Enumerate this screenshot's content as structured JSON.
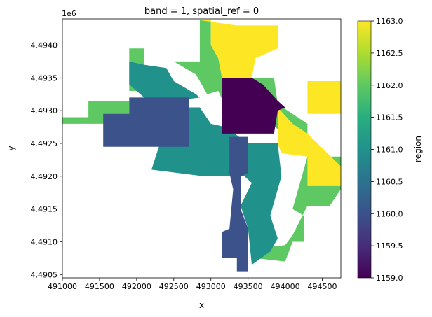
{
  "chart_data": {
    "type": "heatmap",
    "title": "band = 1, spatial_ref = 0",
    "xlabel": "x",
    "ylabel": "y",
    "y_offset_label": "1e6",
    "xlim": [
      491000,
      494750
    ],
    "ylim": [
      4490450,
      4494400
    ],
    "x_ticks": [
      {
        "value": 491000,
        "label": "491000"
      },
      {
        "value": 491500,
        "label": "491500"
      },
      {
        "value": 492000,
        "label": "492000"
      },
      {
        "value": 492500,
        "label": "492500"
      },
      {
        "value": 493000,
        "label": "493000"
      },
      {
        "value": 493500,
        "label": "493500"
      },
      {
        "value": 494000,
        "label": "494000"
      },
      {
        "value": 494500,
        "label": "494500"
      }
    ],
    "y_ticks": [
      {
        "value": 4490500,
        "label": "4.4905"
      },
      {
        "value": 4491000,
        "label": "4.4910"
      },
      {
        "value": 4491500,
        "label": "4.4915"
      },
      {
        "value": 4492000,
        "label": "4.4920"
      },
      {
        "value": 4492500,
        "label": "4.4925"
      },
      {
        "value": 4493000,
        "label": "4.4930"
      },
      {
        "value": 4493500,
        "label": "4.4935"
      },
      {
        "value": 4494000,
        "label": "4.4940"
      }
    ],
    "colorbar": {
      "label": "region",
      "colormap": "viridis",
      "range": [
        1159.0,
        1163.0
      ],
      "ticks": [
        {
          "value": 1159.0,
          "label": "1159.0"
        },
        {
          "value": 1159.5,
          "label": "1159.5"
        },
        {
          "value": 1160.0,
          "label": "1160.0"
        },
        {
          "value": 1160.5,
          "label": "1160.5"
        },
        {
          "value": 1161.0,
          "label": "1161.0"
        },
        {
          "value": 1161.5,
          "label": "1161.5"
        },
        {
          "value": 1162.0,
          "label": "1162.0"
        },
        {
          "value": 1162.5,
          "label": "1162.5"
        },
        {
          "value": 1163.0,
          "label": "1163.0"
        }
      ]
    },
    "regions": [
      {
        "value": 1162,
        "polygon": [
          [
            491000,
            4492900
          ],
          [
            491350,
            4492900
          ],
          [
            491350,
            4493150
          ],
          [
            491900,
            4493150
          ],
          [
            491900,
            4492800
          ],
          [
            491000,
            4492800
          ]
        ]
      },
      {
        "value": 1162,
        "polygon": [
          [
            491900,
            4493950
          ],
          [
            492100,
            4493950
          ],
          [
            492100,
            4493300
          ],
          [
            491900,
            4493300
          ]
        ]
      },
      {
        "value": 1162,
        "polygon": [
          [
            492850,
            4494380
          ],
          [
            493000,
            4494380
          ],
          [
            493000,
            4494000
          ],
          [
            493100,
            4493800
          ],
          [
            493150,
            4493500
          ],
          [
            493550,
            4493500
          ],
          [
            493600,
            4493350
          ],
          [
            493500,
            4493050
          ],
          [
            493200,
            4493050
          ],
          [
            493100,
            4493300
          ],
          [
            492950,
            4493250
          ],
          [
            492800,
            4493550
          ],
          [
            492500,
            4493750
          ],
          [
            492850,
            4493750
          ]
        ]
      },
      {
        "value": 1163,
        "polygon": [
          [
            492850,
            4494380
          ],
          [
            493000,
            4494380
          ],
          [
            493000,
            4494000
          ],
          [
            493100,
            4493800
          ],
          [
            493150,
            4493500
          ],
          [
            493550,
            4493500
          ],
          [
            493600,
            4493800
          ],
          [
            493900,
            4493950
          ],
          [
            493900,
            4494300
          ],
          [
            493350,
            4494300
          ],
          [
            492850,
            4494380
          ]
        ]
      },
      {
        "value": 1162,
        "polygon": [
          [
            493150,
            4493500
          ],
          [
            493850,
            4493500
          ],
          [
            493900,
            4493100
          ],
          [
            494300,
            4492800
          ],
          [
            494300,
            4492300
          ],
          [
            494750,
            4492300
          ],
          [
            494750,
            4491800
          ],
          [
            494600,
            4491550
          ],
          [
            494300,
            4491550
          ],
          [
            494100,
            4491100
          ],
          [
            494000,
            4490950
          ],
          [
            493650,
            4490900
          ],
          [
            493600,
            4490750
          ],
          [
            494000,
            4490700
          ],
          [
            494100,
            4491000
          ],
          [
            494250,
            4491000
          ],
          [
            494250,
            4491400
          ],
          [
            494100,
            4491500
          ],
          [
            494300,
            4492300
          ]
        ]
      },
      {
        "value": 1163,
        "polygon": [
          [
            494300,
            4493450
          ],
          [
            494750,
            4493450
          ],
          [
            494750,
            4492950
          ],
          [
            494300,
            4492950
          ]
        ]
      },
      {
        "value": 1163,
        "polygon": [
          [
            493900,
            4493050
          ],
          [
            494100,
            4492800
          ],
          [
            494300,
            4492650
          ],
          [
            494750,
            4492150
          ],
          [
            494750,
            4491850
          ],
          [
            494300,
            4491850
          ],
          [
            494300,
            4492300
          ],
          [
            493950,
            4492350
          ],
          [
            493900,
            4492500
          ]
        ]
      },
      {
        "value": 1161,
        "polygon": [
          [
            492100,
            4493700
          ],
          [
            492400,
            4493650
          ],
          [
            492500,
            4493450
          ],
          [
            492800,
            4493250
          ],
          [
            492850,
            4493200
          ],
          [
            492500,
            4493150
          ],
          [
            492100,
            4493200
          ],
          [
            491900,
            4493400
          ],
          [
            491900,
            4493750
          ]
        ]
      },
      {
        "value": 1161,
        "polygon": [
          [
            492400,
            4493050
          ],
          [
            492850,
            4493050
          ],
          [
            493000,
            4492800
          ],
          [
            493200,
            4492750
          ],
          [
            493500,
            4492500
          ],
          [
            493900,
            4492500
          ],
          [
            493950,
            4492000
          ],
          [
            493800,
            4491400
          ],
          [
            493900,
            4491050
          ],
          [
            493800,
            4490850
          ],
          [
            493550,
            4490650
          ],
          [
            493500,
            4491200
          ],
          [
            493400,
            4491550
          ],
          [
            493550,
            4491900
          ],
          [
            493450,
            4492000
          ],
          [
            492900,
            4492000
          ],
          [
            492200,
            4492100
          ],
          [
            492300,
            4492450
          ]
        ]
      },
      {
        "value": 1160,
        "polygon": [
          [
            491550,
            4492950
          ],
          [
            491900,
            4492950
          ],
          [
            491900,
            4493200
          ],
          [
            492700,
            4493200
          ],
          [
            492700,
            4492450
          ],
          [
            491550,
            4492450
          ]
        ]
      },
      {
        "value": 1160,
        "polygon": [
          [
            493250,
            4492600
          ],
          [
            493500,
            4492600
          ],
          [
            493500,
            4492050
          ],
          [
            493400,
            4492000
          ],
          [
            493400,
            4491500
          ],
          [
            493500,
            4491200
          ],
          [
            493500,
            4490550
          ],
          [
            493350,
            4490550
          ],
          [
            493350,
            4490750
          ],
          [
            493150,
            4490750
          ],
          [
            493150,
            4491150
          ],
          [
            493250,
            4491200
          ],
          [
            493300,
            4491800
          ],
          [
            493250,
            4492050
          ]
        ]
      },
      {
        "value": 1159,
        "polygon": [
          [
            493150,
            4493500
          ],
          [
            493550,
            4493500
          ],
          [
            493700,
            4493400
          ],
          [
            493900,
            4493150
          ],
          [
            494000,
            4493050
          ],
          [
            493900,
            4493000
          ],
          [
            493850,
            4492650
          ],
          [
            493150,
            4492650
          ]
        ]
      }
    ]
  }
}
